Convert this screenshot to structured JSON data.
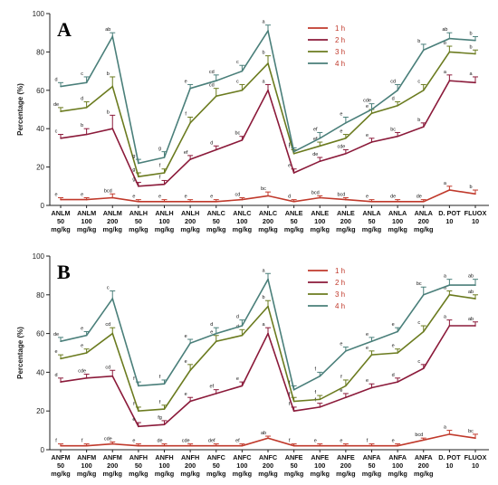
{
  "chart_data": [
    {
      "type": "line",
      "panel": "A",
      "ylabel": "Percentage (%)",
      "ylim": [
        0,
        100
      ],
      "yticks": [
        0,
        20,
        40,
        60,
        80,
        100
      ],
      "categories": [
        [
          "ANLM",
          "50",
          "mg/kg"
        ],
        [
          "ANLM",
          "100",
          "mg/kg"
        ],
        [
          "ANLM",
          "200",
          "mg/kg"
        ],
        [
          "ANLH",
          "50",
          "mg/kg"
        ],
        [
          "ANLH",
          "100",
          "mg/kg"
        ],
        [
          "ANLH",
          "200",
          "mg/kg"
        ],
        [
          "ANLC",
          "50",
          "mg/kg"
        ],
        [
          "ANLC",
          "100",
          "mg/kg"
        ],
        [
          "ANLC",
          "200",
          "mg/kg"
        ],
        [
          "ANLE",
          "50",
          "mg/kg"
        ],
        [
          "ANLE",
          "100",
          "mg/kg"
        ],
        [
          "ANLE",
          "200",
          "mg/kg"
        ],
        [
          "ANLA",
          "50",
          "mg/kg"
        ],
        [
          "ANLA",
          "100",
          "mg/kg"
        ],
        [
          "ANLA",
          "200",
          "mg/kg"
        ],
        [
          "D. POT",
          "10",
          ""
        ],
        [
          "FLUOX",
          "10",
          ""
        ]
      ],
      "legend_position": "top-right",
      "series": [
        {
          "name": "1 h",
          "color": "#c0392b",
          "values": [
            3,
            3,
            4,
            2,
            2,
            2,
            2,
            3,
            5,
            2,
            4,
            3,
            2,
            2,
            2,
            8,
            6
          ],
          "errors": [
            1,
            1,
            2,
            1,
            1,
            1,
            1,
            1,
            2,
            1,
            1,
            1,
            1,
            1,
            1,
            2,
            2
          ],
          "labels": [
            "e",
            "e",
            "bcd",
            "e",
            "e",
            "e",
            "e",
            "cd",
            "bc",
            "d",
            "bcd",
            "bcd",
            "e",
            "de",
            "de",
            "a",
            "b"
          ]
        },
        {
          "name": "2 h",
          "color": "#8b1a3a",
          "values": [
            35,
            37,
            40,
            10,
            11,
            24,
            29,
            34,
            60,
            17,
            23,
            27,
            33,
            36,
            41,
            65,
            64
          ],
          "errors": [
            2,
            3,
            7,
            2,
            2,
            2,
            2,
            2,
            3,
            2,
            2,
            2,
            2,
            2,
            2,
            3,
            3
          ],
          "labels": [
            "c",
            "b",
            "b",
            "g",
            "f",
            "ef",
            "d",
            "bc",
            "a",
            "e",
            "de",
            "cde",
            "e",
            "bc",
            "b",
            "a",
            "a"
          ]
        },
        {
          "name": "3 h",
          "color": "#6b7b1f",
          "values": [
            49,
            51,
            62,
            15,
            17,
            43,
            57,
            60,
            74,
            27,
            31,
            35,
            48,
            52,
            60,
            80,
            79
          ],
          "errors": [
            2,
            3,
            5,
            2,
            2,
            3,
            4,
            3,
            4,
            2,
            2,
            2,
            2,
            2,
            3,
            3,
            2
          ],
          "labels": [
            "de",
            "d",
            "b",
            "g",
            "f",
            "f",
            "cd",
            "c",
            "b",
            "f",
            "ef",
            "e",
            "e",
            "d",
            "c",
            "b",
            "b"
          ]
        },
        {
          "name": "4 h",
          "color": "#4a7f7a",
          "values": [
            62,
            64,
            88,
            22,
            25,
            61,
            65,
            70,
            91,
            28,
            35,
            43,
            50,
            60,
            81,
            87,
            86
          ],
          "errors": [
            2,
            3,
            2,
            2,
            3,
            2,
            3,
            3,
            3,
            2,
            3,
            3,
            3,
            3,
            3,
            3,
            2
          ],
          "labels": [
            "d",
            "c",
            "ab",
            "g",
            "g",
            "e",
            "cd",
            "c",
            "a",
            "f",
            "ef",
            "e",
            "cde",
            "cd",
            "b",
            "ab",
            "b"
          ]
        }
      ]
    },
    {
      "type": "line",
      "panel": "B",
      "ylabel": "Percentage (%)",
      "ylim": [
        0,
        100
      ],
      "yticks": [
        0,
        20,
        40,
        60,
        80,
        100
      ],
      "categories": [
        [
          "ANFM",
          "50",
          "mg/kg"
        ],
        [
          "ANFM",
          "100",
          "mg/kg"
        ],
        [
          "ANFM",
          "200",
          "mg/kg"
        ],
        [
          "ANFH",
          "50",
          "mg/kg"
        ],
        [
          "ANFH",
          "100",
          "mg/kg"
        ],
        [
          "ANFH",
          "200",
          "mg/kg"
        ],
        [
          "ANFC",
          "50",
          "mg/kg"
        ],
        [
          "ANFC",
          "100",
          "mg/kg"
        ],
        [
          "ANFC",
          "200",
          "mg/kg"
        ],
        [
          "ANFE",
          "50",
          "mg/kg"
        ],
        [
          "ANFE",
          "100",
          "mg/kg"
        ],
        [
          "ANFE",
          "200",
          "mg/kg"
        ],
        [
          "ANFA",
          "50",
          "mg/kg"
        ],
        [
          "ANFA",
          "100",
          "mg/kg"
        ],
        [
          "ANFA",
          "200",
          "mg/kg"
        ],
        [
          "D. POT",
          "10",
          ""
        ],
        [
          "FLUOX",
          "10",
          ""
        ]
      ],
      "legend_position": "top-right",
      "series": [
        {
          "name": "1 h",
          "color": "#c0392b",
          "values": [
            2,
            2,
            3,
            2,
            2,
            2,
            2,
            2,
            6,
            2,
            2,
            2,
            2,
            2,
            5,
            8,
            6
          ],
          "errors": [
            1,
            1,
            1,
            1,
            1,
            1,
            1,
            1,
            1,
            1,
            1,
            1,
            1,
            1,
            1,
            2,
            2
          ],
          "labels": [
            "f",
            "f",
            "cde",
            "e",
            "de",
            "cde",
            "def",
            "ef",
            "ab",
            "f",
            "e",
            "e",
            "f",
            "e",
            "bcd",
            "a",
            "bc"
          ]
        },
        {
          "name": "2 h",
          "color": "#8b1a3a",
          "values": [
            35,
            37,
            38,
            12,
            13,
            25,
            29,
            33,
            60,
            20,
            22,
            27,
            32,
            35,
            42,
            64,
            64
          ],
          "errors": [
            2,
            2,
            3,
            2,
            2,
            2,
            2,
            2,
            3,
            2,
            2,
            2,
            2,
            2,
            2,
            3,
            2
          ],
          "labels": [
            "d",
            "cde",
            "cd",
            "e",
            "fg",
            "e",
            "ef",
            "e",
            "a",
            "f",
            "f",
            "e",
            "e",
            "d",
            "c",
            "a",
            "ab"
          ]
        },
        {
          "name": "3 h",
          "color": "#6b7b1f",
          "values": [
            47,
            50,
            60,
            20,
            21,
            41,
            56,
            59,
            74,
            25,
            26,
            33,
            49,
            50,
            61,
            80,
            78
          ],
          "errors": [
            2,
            2,
            3,
            2,
            2,
            3,
            3,
            3,
            3,
            2,
            2,
            3,
            2,
            2,
            3,
            2,
            2
          ],
          "labels": [
            "e",
            "e",
            "cd",
            "f",
            "f",
            "e",
            "e",
            "d",
            "b",
            "f",
            "f",
            "f",
            "e",
            "e",
            "c",
            "a",
            "ab"
          ]
        },
        {
          "name": "4 h",
          "color": "#4a7f7a",
          "values": [
            56,
            59,
            78,
            33,
            34,
            55,
            60,
            64,
            88,
            31,
            38,
            51,
            56,
            61,
            80,
            85,
            85
          ],
          "errors": [
            2,
            2,
            4,
            2,
            2,
            2,
            3,
            3,
            3,
            2,
            2,
            2,
            2,
            2,
            4,
            3,
            3
          ],
          "labels": [
            "de",
            "e",
            "c",
            "f",
            "f",
            "e",
            "d",
            "d",
            "a",
            "f",
            "f",
            "e",
            "e",
            "e",
            "bc",
            "a",
            "ab"
          ]
        }
      ]
    }
  ]
}
